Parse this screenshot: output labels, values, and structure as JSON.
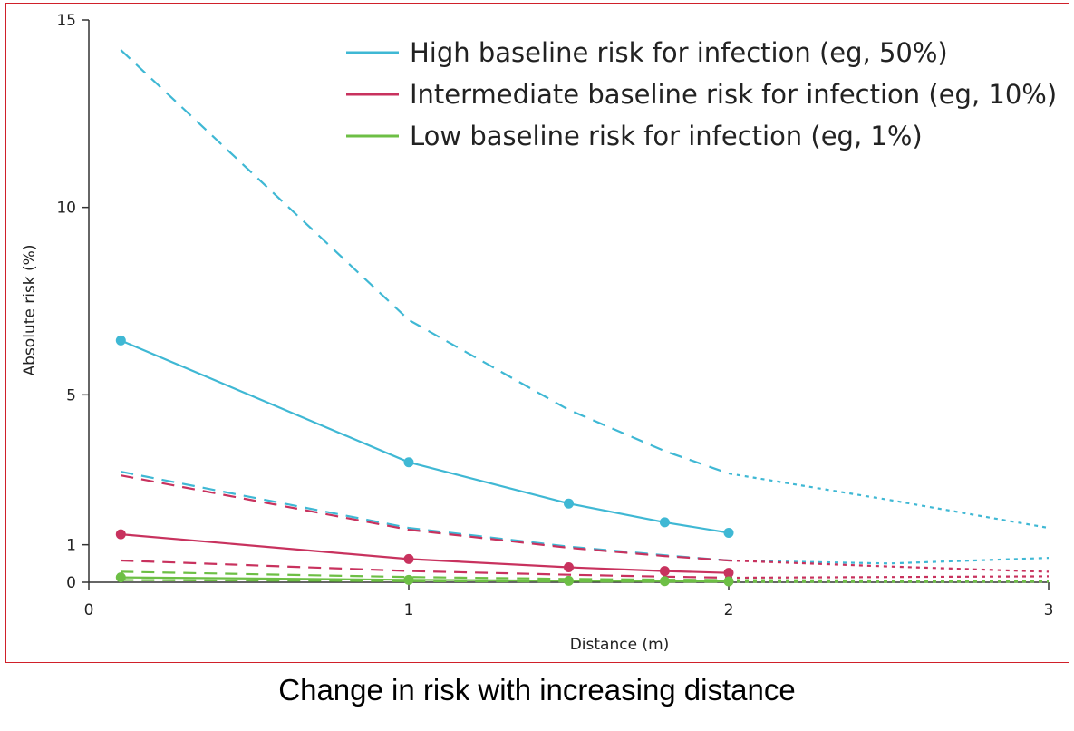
{
  "caption": "Change in risk with increasing distance",
  "chart_data": {
    "type": "line",
    "title": "",
    "xlabel": "Distance (m)",
    "ylabel": "Absolute risk (%)",
    "xlim": [
      0,
      3
    ],
    "ylim": [
      0,
      15
    ],
    "xticks": [
      "0",
      "1",
      "2",
      "3"
    ],
    "xtick_values": [
      0,
      1,
      2,
      3
    ],
    "yticks": [
      "0",
      "1",
      "5",
      "10",
      "15"
    ],
    "ytick_values": [
      0,
      1,
      5,
      10,
      15
    ],
    "grid": false,
    "legend_position": "top-right",
    "legend": [
      {
        "label": "High baseline risk for infection (eg, 50%)",
        "color": "#3fb8d4"
      },
      {
        "label": "Intermediate baseline risk for infection (eg, 10%)",
        "color": "#c8325e"
      },
      {
        "label": "Low baseline risk for infection (eg, 1%)",
        "color": "#6dbf45"
      }
    ],
    "series": [
      {
        "name": "High baseline risk – estimate",
        "color": "#3fb8d4",
        "style": "solid",
        "markers": true,
        "x": [
          0.1,
          1,
          1.5,
          1.8,
          2
        ],
        "y": [
          6.45,
          3.2,
          2.1,
          1.6,
          1.32
        ]
      },
      {
        "name": "High baseline risk – upper bound",
        "color": "#3fb8d4",
        "style": "dashed",
        "markers": false,
        "x": [
          0.1,
          1,
          1.5,
          1.8,
          2
        ],
        "y": [
          14.2,
          7,
          4.6,
          3.5,
          2.9
        ]
      },
      {
        "name": "High baseline risk – upper bound extrapolated",
        "color": "#3fb8d4",
        "style": "dotted",
        "markers": false,
        "x": [
          2,
          2.5,
          3
        ],
        "y": [
          2.9,
          2.2,
          1.45
        ]
      },
      {
        "name": "High baseline risk – lower bound",
        "color": "#3fb8d4",
        "style": "dashed",
        "markers": false,
        "x": [
          0.1,
          1,
          1.5,
          1.8,
          2
        ],
        "y": [
          2.95,
          1.45,
          0.95,
          0.72,
          0.58
        ]
      },
      {
        "name": "High baseline risk – lower bound extrapolated",
        "color": "#3fb8d4",
        "style": "dotted",
        "markers": false,
        "x": [
          2,
          2.5,
          3
        ],
        "y": [
          0.58,
          0.5,
          0.65
        ]
      },
      {
        "name": "Intermediate baseline risk – estimate",
        "color": "#c8325e",
        "style": "solid",
        "markers": true,
        "x": [
          0.1,
          1,
          1.5,
          1.8,
          2
        ],
        "y": [
          1.28,
          0.62,
          0.4,
          0.3,
          0.25
        ]
      },
      {
        "name": "Intermediate baseline risk – upper bound",
        "color": "#c8325e",
        "style": "dashed",
        "markers": false,
        "x": [
          0.1,
          1,
          1.5,
          1.8,
          2
        ],
        "y": [
          2.85,
          1.4,
          0.92,
          0.7,
          0.58
        ]
      },
      {
        "name": "Intermediate baseline risk – upper bound extrapolated",
        "color": "#c8325e",
        "style": "dotted",
        "markers": false,
        "x": [
          2,
          2.5,
          3
        ],
        "y": [
          0.58,
          0.42,
          0.28
        ]
      },
      {
        "name": "Intermediate baseline risk – lower bound",
        "color": "#c8325e",
        "style": "dashed",
        "markers": false,
        "x": [
          0.1,
          1,
          1.5,
          1.8,
          2
        ],
        "y": [
          0.58,
          0.3,
          0.2,
          0.15,
          0.12
        ]
      },
      {
        "name": "Intermediate baseline risk – lower bound extrapolated",
        "color": "#c8325e",
        "style": "dotted",
        "markers": false,
        "x": [
          2,
          2.5,
          3
        ],
        "y": [
          0.12,
          0.14,
          0.16
        ]
      },
      {
        "name": "Low baseline risk – estimate",
        "color": "#6dbf45",
        "style": "solid",
        "markers": true,
        "x": [
          0.1,
          1,
          1.5,
          1.8,
          2
        ],
        "y": [
          0.13,
          0.065,
          0.04,
          0.03,
          0.025
        ]
      },
      {
        "name": "Low baseline risk – upper bound",
        "color": "#6dbf45",
        "style": "dashed",
        "markers": false,
        "x": [
          0.1,
          1,
          1.5,
          1.8,
          2
        ],
        "y": [
          0.28,
          0.14,
          0.09,
          0.07,
          0.06
        ]
      },
      {
        "name": "Low baseline risk – upper bound extrapolated",
        "color": "#6dbf45",
        "style": "dotted",
        "markers": false,
        "x": [
          2,
          2.5,
          3
        ],
        "y": [
          0.06,
          0.045,
          0.03
        ]
      },
      {
        "name": "Low baseline risk – lower bound",
        "color": "#6dbf45",
        "style": "dashed",
        "markers": false,
        "x": [
          0.1,
          1,
          1.5,
          1.8,
          2
        ],
        "y": [
          0.06,
          0.03,
          0.02,
          0.015,
          0.012
        ]
      },
      {
        "name": "Low baseline risk – lower bound extrapolated",
        "color": "#6dbf45",
        "style": "dotted",
        "markers": false,
        "x": [
          2,
          2.5,
          3
        ],
        "y": [
          0.012,
          0.013,
          0.015
        ]
      }
    ]
  }
}
